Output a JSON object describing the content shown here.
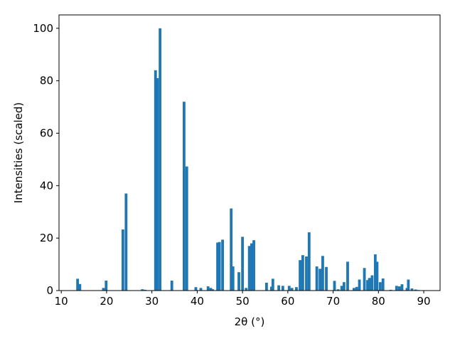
{
  "chart_data": {
    "type": "bar",
    "xlabel": "2θ (°)",
    "ylabel": "Intensities (scaled)",
    "color": "#1f77b4",
    "bar_width": 0.6,
    "x": [
      13.6,
      14.1,
      19.3,
      19.9,
      23.6,
      24.3,
      27.9,
      28.5,
      30.8,
      31.2,
      31.8,
      34.4,
      37.1,
      37.7,
      39.7,
      40.8,
      42.4,
      43.0,
      43.4,
      44.5,
      44.9,
      45.6,
      47.5,
      47.9,
      49.2,
      50.0,
      50.8,
      51.5,
      52.0,
      52.5,
      55.3,
      56.4,
      56.7,
      58.0,
      58.9,
      60.3,
      60.9,
      61.9,
      62.7,
      63.3,
      64.1,
      64.7,
      66.4,
      67.1,
      67.7,
      68.5,
      70.3,
      71.1,
      71.9,
      72.4,
      73.2,
      74.6,
      75.2,
      75.8,
      76.9,
      77.6,
      78.0,
      78.6,
      79.3,
      79.7,
      80.4,
      81.0,
      82.7,
      84.0,
      84.6,
      85.2,
      86.3,
      86.6,
      87.4,
      88.2,
      88.8
    ],
    "values": [
      4.5,
      2.5,
      1.0,
      3.8,
      23.3,
      37.0,
      0.5,
      0.3,
      84.0,
      81.0,
      100.0,
      3.8,
      72.0,
      47.3,
      1.3,
      1.0,
      1.6,
      1.0,
      0.5,
      18.3,
      18.5,
      19.4,
      31.3,
      9.2,
      7.0,
      20.5,
      1.0,
      17.0,
      18.0,
      19.2,
      3.0,
      1.5,
      4.5,
      2.0,
      1.8,
      1.8,
      1.0,
      1.3,
      11.6,
      13.5,
      13.0,
      22.2,
      9.2,
      8.3,
      13.2,
      9.0,
      3.7,
      0.5,
      1.8,
      3.2,
      11.0,
      1.0,
      1.4,
      4.2,
      8.6,
      4.0,
      4.8,
      5.8,
      13.8,
      11.0,
      3.2,
      4.6,
      0.3,
      1.8,
      1.6,
      2.4,
      1.0,
      4.2,
      0.8,
      0.4,
      0.2
    ],
    "xlim": [
      9.5,
      93.6
    ],
    "ylim": [
      0,
      105.1
    ],
    "xticks": [
      10,
      20,
      30,
      40,
      50,
      60,
      70,
      80,
      90
    ],
    "yticks": [
      0,
      20,
      40,
      60,
      80,
      100
    ]
  }
}
